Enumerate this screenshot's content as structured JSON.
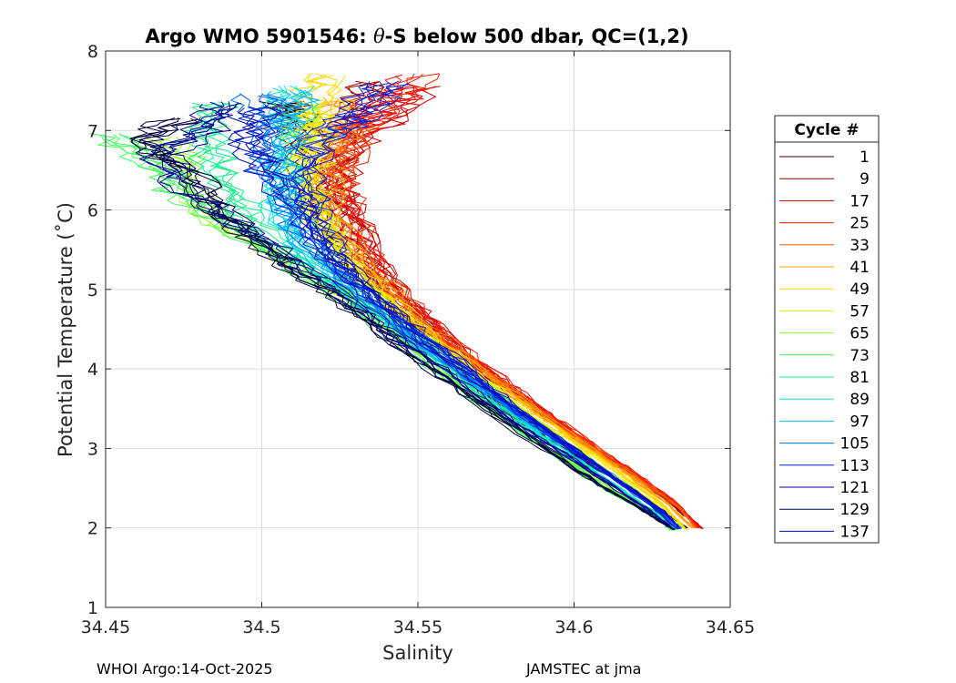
{
  "chart_data": {
    "type": "line",
    "title": {
      "prefix": "Argo WMO 5901546: ",
      "theta": "θ",
      "suffix": "-S below 500 dbar,  QC=(1,2)"
    },
    "xlabel": "Salinity",
    "ylabel": "Potential Temperature (˚C)",
    "xlim": [
      34.45,
      34.65
    ],
    "ylim": [
      1,
      8
    ],
    "xticks": [
      "34.45",
      "34.5",
      "34.55",
      "34.6",
      "34.65"
    ],
    "yticks": [
      "1",
      "2",
      "3",
      "4",
      "5",
      "6",
      "7",
      "8"
    ],
    "grid": true,
    "legend": {
      "title": "Cycle #",
      "placement": "right",
      "entries": [
        "1",
        "9",
        "17",
        "25",
        "33",
        "41",
        "49",
        "57",
        "65",
        "73",
        "81",
        "89",
        "97",
        "105",
        "113",
        "121",
        "129",
        "137"
      ],
      "colors": [
        "#3a0000",
        "#9e0000",
        "#d60000",
        "#ff1a00",
        "#ff5a00",
        "#ff9c00",
        "#ffd800",
        "#d8ff00",
        "#8cff2a",
        "#3fff5a",
        "#14f08a",
        "#00e6d8",
        "#00b4ff",
        "#0064ff",
        "#0020e0",
        "#000099",
        "#000040",
        "#0010c0"
      ]
    },
    "series": [
      {
        "name": "Cycle 1",
        "color": "#3a0000",
        "points": [
          [
            34.509,
            7.35
          ],
          [
            34.512,
            7.2
          ],
          [
            34.513,
            6.8
          ],
          [
            34.516,
            6.3
          ],
          [
            34.519,
            5.8
          ],
          [
            34.528,
            5.3
          ],
          [
            34.542,
            4.8
          ],
          [
            34.56,
            4.1
          ],
          [
            34.578,
            3.5
          ],
          [
            34.6,
            2.95
          ],
          [
            34.62,
            2.45
          ],
          [
            34.636,
            2.0
          ]
        ]
      },
      {
        "name": "Cycle 9",
        "color": "#9e0000",
        "points": [
          [
            34.535,
            7.6
          ],
          [
            34.531,
            7.2
          ],
          [
            34.525,
            6.8
          ],
          [
            34.524,
            6.3
          ],
          [
            34.53,
            5.8
          ],
          [
            34.54,
            5.1
          ],
          [
            34.552,
            4.6
          ],
          [
            34.57,
            4.0
          ],
          [
            34.59,
            3.45
          ],
          [
            34.612,
            2.85
          ],
          [
            34.63,
            2.35
          ],
          [
            34.64,
            2.0
          ]
        ]
      },
      {
        "name": "Cycle 17",
        "color": "#d60000",
        "points": [
          [
            34.55,
            7.55
          ],
          [
            34.543,
            7.2
          ],
          [
            34.528,
            6.8
          ],
          [
            34.526,
            6.3
          ],
          [
            34.531,
            5.7
          ],
          [
            34.541,
            5.1
          ],
          [
            34.555,
            4.55
          ],
          [
            34.573,
            3.95
          ],
          [
            34.594,
            3.35
          ],
          [
            34.615,
            2.8
          ],
          [
            34.633,
            2.3
          ],
          [
            34.641,
            1.99
          ]
        ]
      },
      {
        "name": "Cycle 25",
        "color": "#ff1a00",
        "points": [
          [
            34.552,
            7.7
          ],
          [
            34.541,
            7.35
          ],
          [
            34.53,
            7.0
          ],
          [
            34.525,
            6.4
          ],
          [
            34.529,
            5.9
          ],
          [
            34.538,
            5.2
          ],
          [
            34.553,
            4.6
          ],
          [
            34.572,
            4.0
          ],
          [
            34.593,
            3.4
          ],
          [
            34.613,
            2.85
          ],
          [
            34.632,
            2.35
          ],
          [
            34.64,
            2.0
          ]
        ]
      },
      {
        "name": "Cycle 33",
        "color": "#ff5a00",
        "points": [
          [
            34.531,
            7.1
          ],
          [
            34.527,
            6.7
          ],
          [
            34.521,
            6.1
          ],
          [
            34.527,
            5.6
          ],
          [
            34.539,
            5.0
          ],
          [
            34.555,
            4.45
          ],
          [
            34.574,
            3.9
          ],
          [
            34.595,
            3.3
          ],
          [
            34.616,
            2.75
          ],
          [
            34.634,
            2.25
          ],
          [
            34.639,
            2.0
          ]
        ]
      },
      {
        "name": "Cycle 41",
        "color": "#ff9c00",
        "points": [
          [
            34.527,
            7.4
          ],
          [
            34.523,
            7.0
          ],
          [
            34.52,
            6.5
          ],
          [
            34.524,
            5.9
          ],
          [
            34.534,
            5.3
          ],
          [
            34.55,
            4.6
          ],
          [
            34.57,
            4.0
          ],
          [
            34.592,
            3.35
          ],
          [
            34.613,
            2.8
          ],
          [
            34.63,
            2.3
          ],
          [
            34.638,
            2.0
          ]
        ]
      },
      {
        "name": "Cycle 49",
        "color": "#ffd800",
        "points": [
          [
            34.52,
            7.7
          ],
          [
            34.517,
            7.3
          ],
          [
            34.518,
            6.9
          ],
          [
            34.516,
            6.4
          ],
          [
            34.521,
            5.8
          ],
          [
            34.533,
            5.2
          ],
          [
            34.55,
            4.55
          ],
          [
            34.569,
            3.95
          ],
          [
            34.59,
            3.35
          ],
          [
            34.611,
            2.8
          ],
          [
            34.628,
            2.3
          ],
          [
            34.636,
            1.98
          ]
        ]
      },
      {
        "name": "Cycle 57",
        "color": "#d8ff00",
        "points": [
          [
            34.516,
            7.3
          ],
          [
            34.514,
            6.9
          ],
          [
            34.515,
            6.3
          ],
          [
            34.52,
            5.8
          ],
          [
            34.53,
            5.2
          ],
          [
            34.547,
            4.55
          ],
          [
            34.567,
            3.95
          ],
          [
            34.588,
            3.35
          ],
          [
            34.608,
            2.8
          ],
          [
            34.626,
            2.3
          ],
          [
            34.635,
            2.0
          ]
        ]
      },
      {
        "name": "Cycle 65",
        "color": "#8cff2a",
        "points": [
          [
            34.47,
            6.9
          ],
          [
            34.476,
            6.6
          ],
          [
            34.479,
            6.1
          ],
          [
            34.493,
            5.7
          ],
          [
            34.512,
            5.3
          ],
          [
            34.532,
            4.8
          ],
          [
            34.552,
            4.2
          ],
          [
            34.572,
            3.55
          ],
          [
            34.593,
            2.95
          ],
          [
            34.612,
            2.5
          ],
          [
            34.627,
            2.15
          ],
          [
            34.632,
            1.97
          ]
        ]
      },
      {
        "name": "Cycle 73",
        "color": "#3fff5a",
        "points": [
          [
            34.452,
            6.95
          ],
          [
            34.466,
            6.6
          ],
          [
            34.475,
            6.2
          ],
          [
            34.49,
            5.8
          ],
          [
            34.508,
            5.35
          ],
          [
            34.528,
            4.85
          ],
          [
            34.548,
            4.25
          ],
          [
            34.57,
            3.6
          ],
          [
            34.591,
            3.0
          ],
          [
            34.61,
            2.5
          ],
          [
            34.626,
            2.15
          ],
          [
            34.631,
            1.97
          ]
        ]
      },
      {
        "name": "Cycle 81",
        "color": "#14f08a",
        "points": [
          [
            34.486,
            7.35
          ],
          [
            34.483,
            6.9
          ],
          [
            34.488,
            6.4
          ],
          [
            34.496,
            5.9
          ],
          [
            34.512,
            5.4
          ],
          [
            34.533,
            4.85
          ],
          [
            34.553,
            4.25
          ],
          [
            34.574,
            3.6
          ],
          [
            34.595,
            3.0
          ],
          [
            34.614,
            2.5
          ],
          [
            34.628,
            2.15
          ],
          [
            34.633,
            1.98
          ]
        ]
      },
      {
        "name": "Cycle 89",
        "color": "#00e6d8",
        "points": [
          [
            34.51,
            7.55
          ],
          [
            34.509,
            7.2
          ],
          [
            34.508,
            6.8
          ],
          [
            34.506,
            6.3
          ],
          [
            34.507,
            5.9
          ],
          [
            34.515,
            5.4
          ],
          [
            34.532,
            4.85
          ],
          [
            34.553,
            4.25
          ],
          [
            34.574,
            3.6
          ],
          [
            34.596,
            3.0
          ],
          [
            34.616,
            2.45
          ],
          [
            34.632,
            2.0
          ]
        ]
      },
      {
        "name": "Cycle 97",
        "color": "#00b4ff",
        "points": [
          [
            34.512,
            7.5
          ],
          [
            34.51,
            7.1
          ],
          [
            34.508,
            6.6
          ],
          [
            34.509,
            6.1
          ],
          [
            34.514,
            5.6
          ],
          [
            34.526,
            5.1
          ],
          [
            34.545,
            4.5
          ],
          [
            34.566,
            3.9
          ],
          [
            34.588,
            3.3
          ],
          [
            34.609,
            2.75
          ],
          [
            34.627,
            2.25
          ],
          [
            34.634,
            2.0
          ]
        ]
      },
      {
        "name": "Cycle 105",
        "color": "#0064ff",
        "points": [
          [
            34.5,
            7.45
          ],
          [
            34.502,
            7.0
          ],
          [
            34.504,
            6.5
          ],
          [
            34.51,
            6.0
          ],
          [
            34.518,
            5.5
          ],
          [
            34.532,
            5.0
          ],
          [
            34.55,
            4.4
          ],
          [
            34.57,
            3.8
          ],
          [
            34.591,
            3.2
          ],
          [
            34.612,
            2.65
          ],
          [
            34.628,
            2.2
          ],
          [
            34.634,
            1.99
          ]
        ]
      },
      {
        "name": "Cycle 113",
        "color": "#0020e0",
        "points": [
          [
            34.54,
            7.6
          ],
          [
            34.532,
            7.2
          ],
          [
            34.52,
            6.9
          ],
          [
            34.514,
            6.4
          ],
          [
            34.517,
            5.9
          ],
          [
            34.526,
            5.3
          ],
          [
            34.542,
            4.7
          ],
          [
            34.562,
            4.1
          ],
          [
            34.583,
            3.45
          ],
          [
            34.605,
            2.85
          ],
          [
            34.623,
            2.35
          ],
          [
            34.633,
            1.99
          ]
        ]
      },
      {
        "name": "Cycle 121",
        "color": "#000099",
        "points": [
          [
            34.49,
            7.35
          ],
          [
            34.482,
            7.0
          ],
          [
            34.468,
            6.7
          ],
          [
            34.475,
            6.3
          ],
          [
            34.49,
            5.9
          ],
          [
            34.505,
            5.5
          ],
          [
            34.522,
            5.05
          ],
          [
            34.54,
            4.5
          ],
          [
            34.561,
            3.9
          ],
          [
            34.582,
            3.3
          ],
          [
            34.604,
            2.75
          ],
          [
            34.623,
            2.25
          ],
          [
            34.632,
            1.98
          ]
        ]
      },
      {
        "name": "Cycle 129",
        "color": "#000040",
        "points": [
          [
            34.475,
            7.15
          ],
          [
            34.462,
            6.85
          ],
          [
            34.478,
            6.5
          ],
          [
            34.486,
            6.05
          ],
          [
            34.497,
            5.65
          ],
          [
            34.51,
            5.25
          ],
          [
            34.526,
            4.85
          ],
          [
            34.544,
            4.3
          ],
          [
            34.565,
            3.7
          ],
          [
            34.587,
            3.1
          ],
          [
            34.608,
            2.55
          ],
          [
            34.625,
            2.15
          ],
          [
            34.632,
            1.98
          ]
        ]
      },
      {
        "name": "Cycle 137",
        "color": "#0010c0",
        "points": [
          [
            34.5,
            7.3
          ],
          [
            34.497,
            6.9
          ],
          [
            34.503,
            6.5
          ],
          [
            34.512,
            6.0
          ],
          [
            34.52,
            5.5
          ],
          [
            34.535,
            4.95
          ],
          [
            34.553,
            4.35
          ],
          [
            34.573,
            3.75
          ],
          [
            34.594,
            3.15
          ],
          [
            34.614,
            2.6
          ],
          [
            34.629,
            2.2
          ],
          [
            34.634,
            1.99
          ]
        ]
      }
    ]
  },
  "footer": {
    "left": "WHOI Argo:14-Oct-2025",
    "right": "JAMSTEC at jma"
  }
}
